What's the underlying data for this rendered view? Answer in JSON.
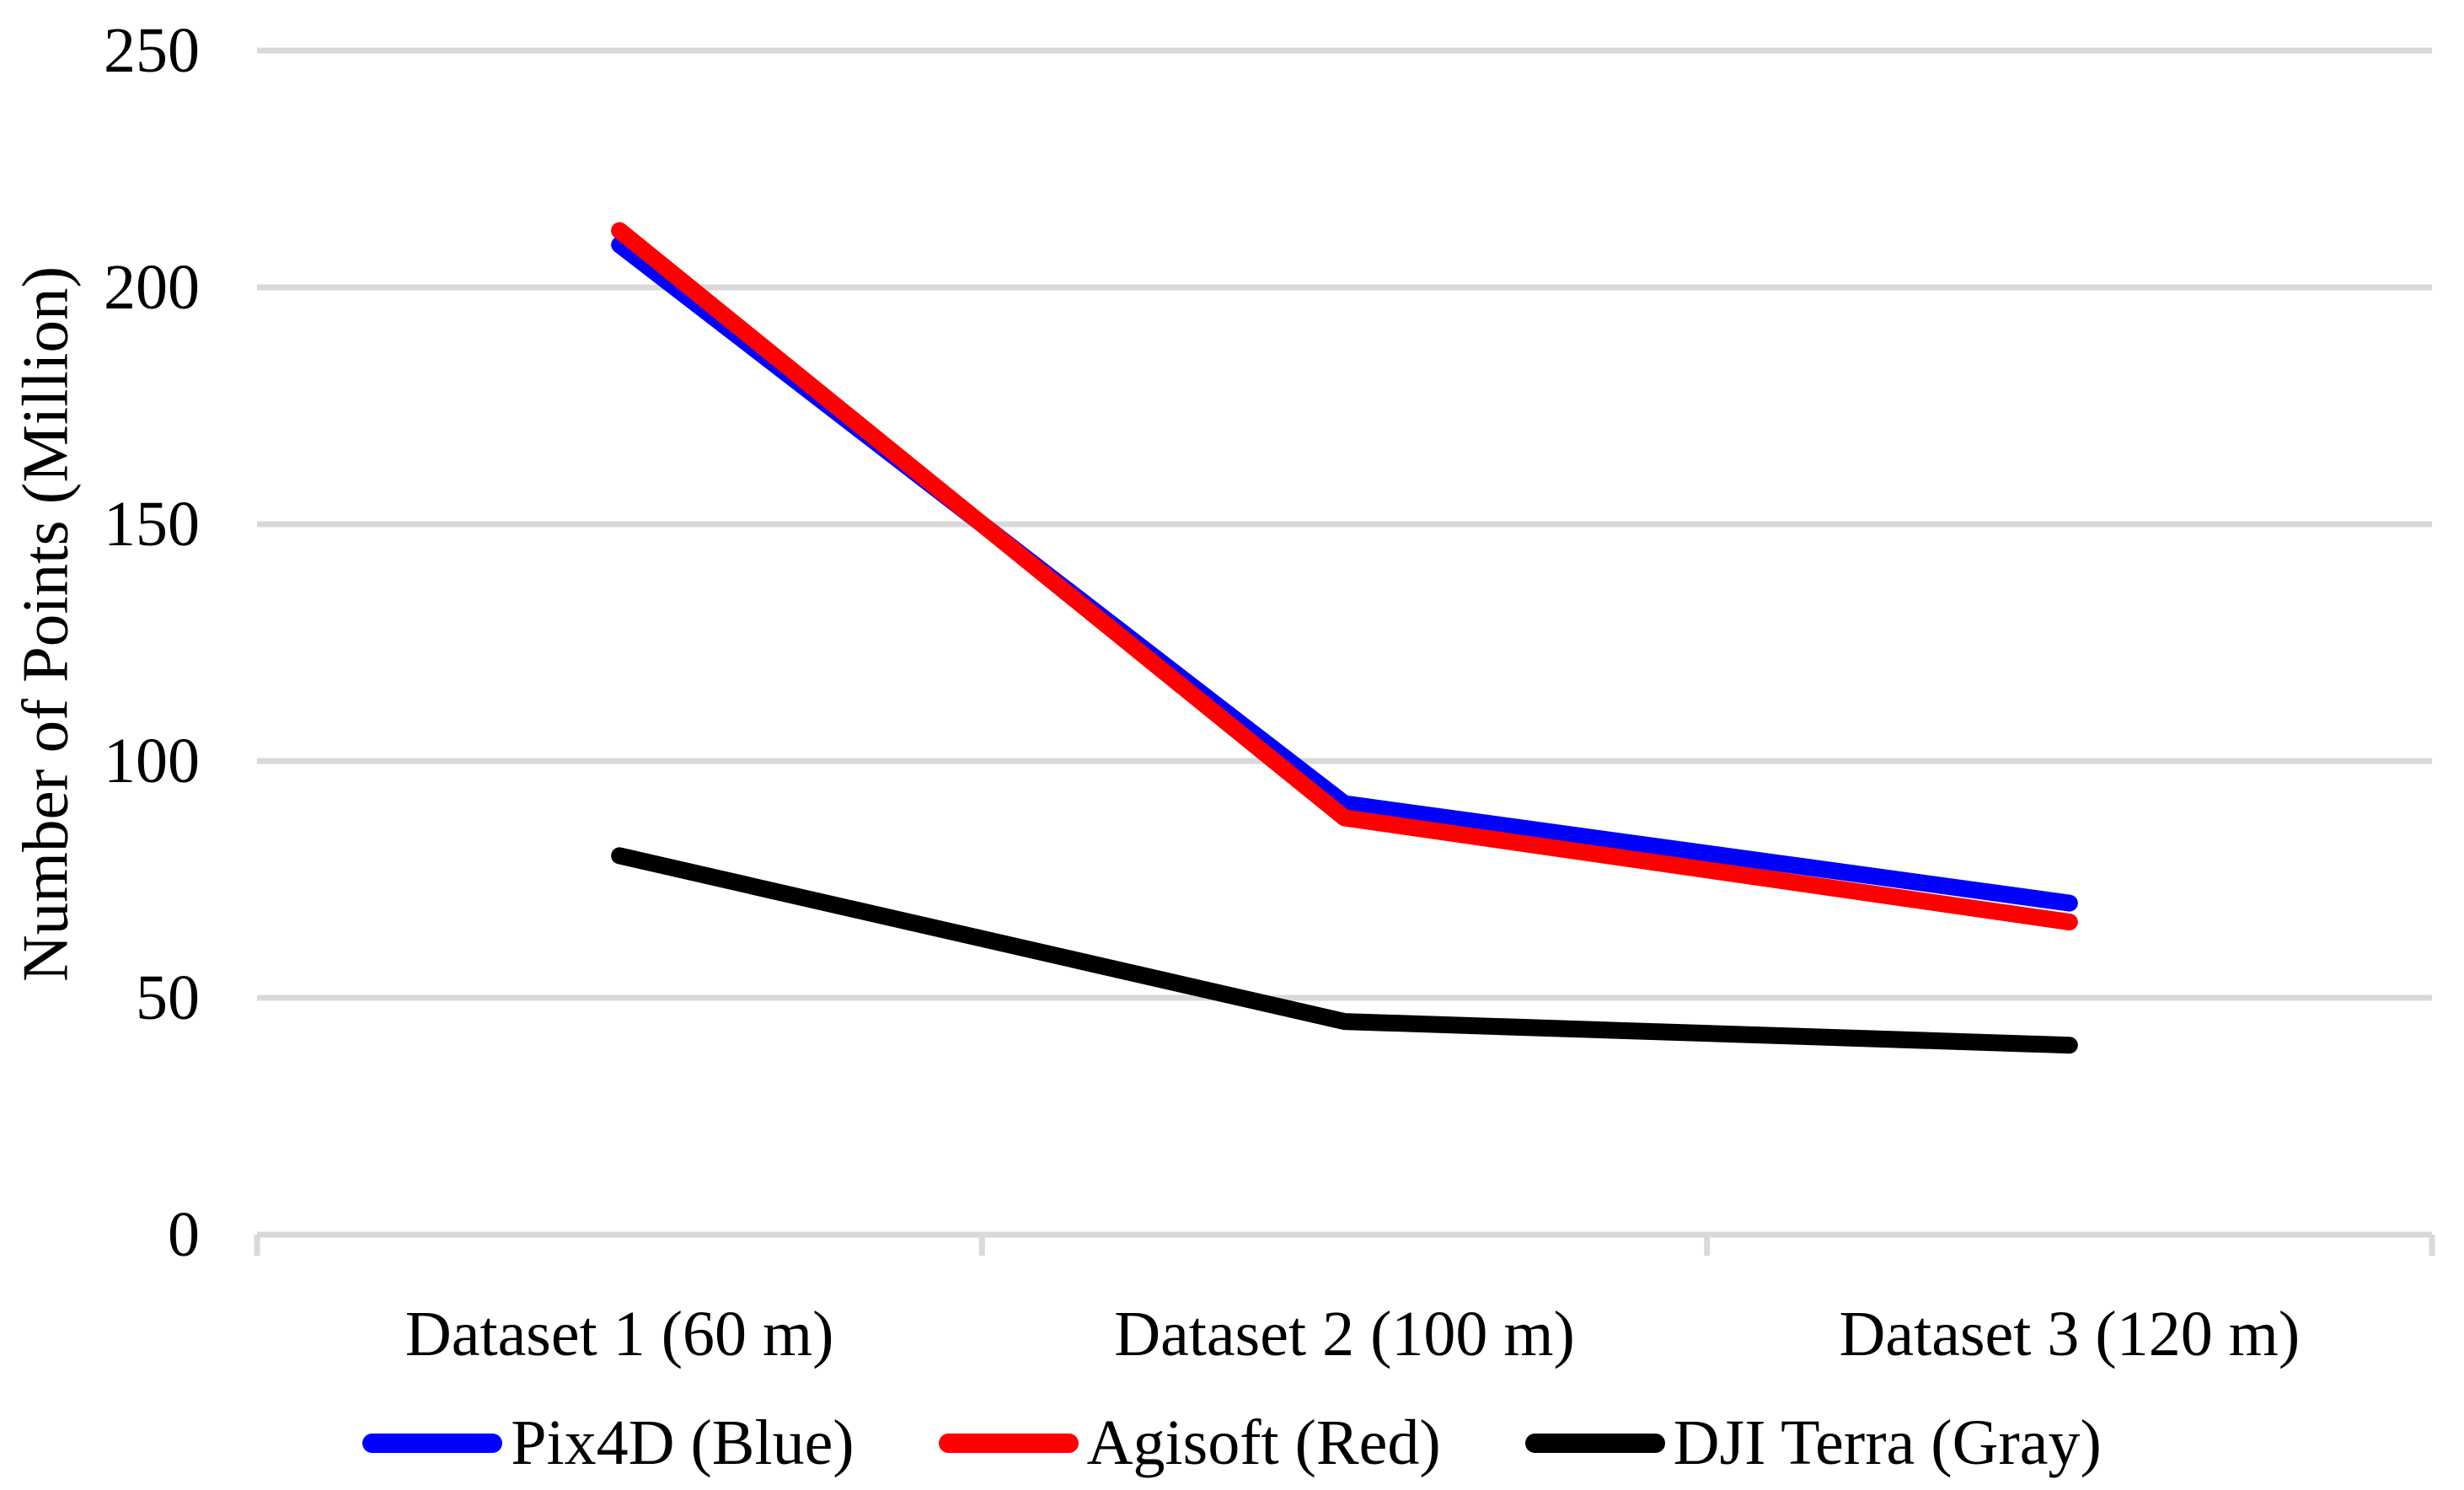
{
  "chart_data": {
    "type": "line",
    "title": "",
    "xlabel": "",
    "ylabel": "Number of Points (Million)",
    "categories": [
      "Dataset 1 (60 m)",
      "Dataset 2 (100 m)",
      "Dataset 3 (120 m)"
    ],
    "series": [
      {
        "name": "Pix4D (Blue)",
        "color": "#0000FF",
        "values": [
          209,
          91,
          70
        ]
      },
      {
        "name": "Agisoft (Red)",
        "color": "#FF0000",
        "values": [
          212,
          88,
          66
        ]
      },
      {
        "name": "DJI Terra (Gray)",
        "color": "#000000",
        "values": [
          80,
          45,
          40
        ]
      }
    ],
    "ylim": [
      0,
      250
    ],
    "yticks": [
      0,
      50,
      100,
      150,
      200,
      250
    ],
    "ytick_labels": [
      "0",
      "50",
      "100",
      "150",
      "200",
      "250"
    ],
    "grid": true,
    "gridline_color": "#D9D9D9",
    "axis_line_color": "#D9D9D9",
    "background_color": "#FFFFFF",
    "legend_position": "bottom",
    "line_style": "thick-rounded"
  }
}
